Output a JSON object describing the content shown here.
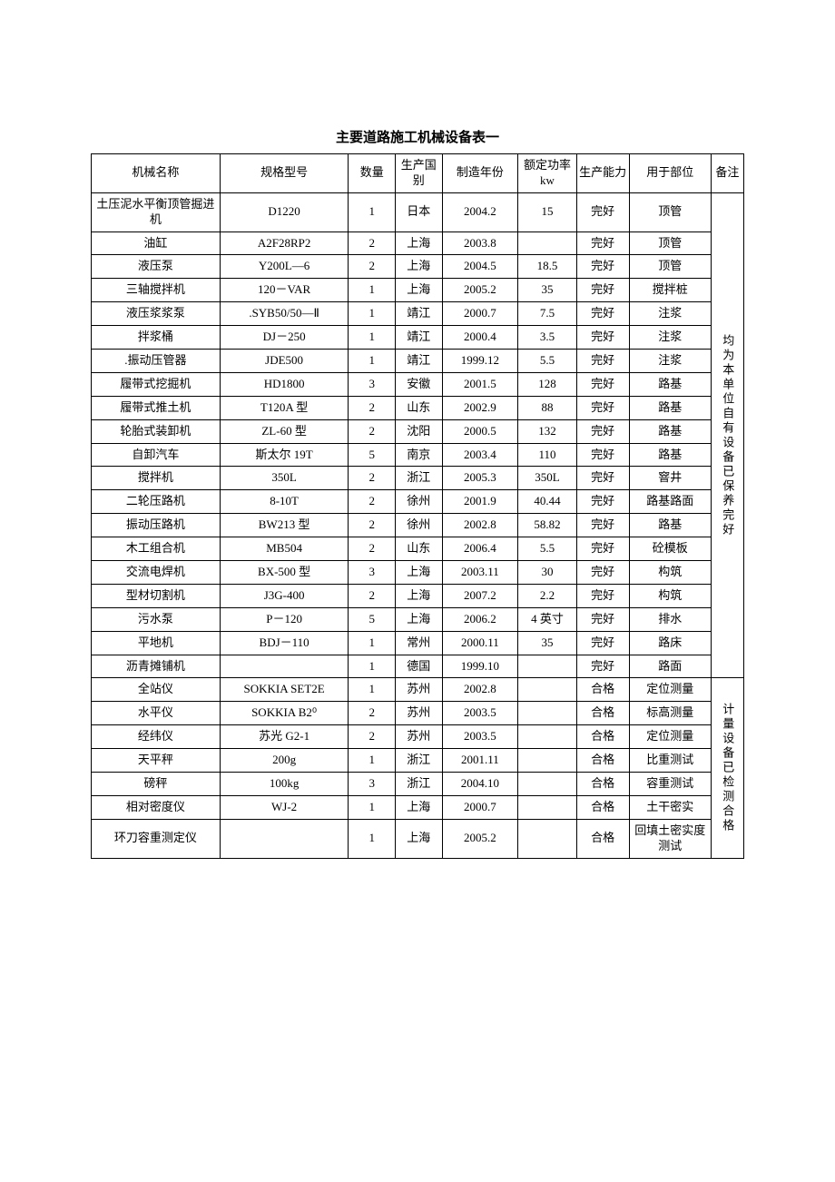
{
  "title": "主要道路施工机械设备表一",
  "headers": {
    "name": "机械名称",
    "spec": "规格型号",
    "qty": "数量",
    "origin": "生产国别",
    "year": "制造年份",
    "power": "额定功率kw",
    "capacity": "生产能力",
    "use": "用于部位",
    "note": "备注"
  },
  "group1_note": "均为本单位自有设备已保养完好",
  "group2_note": "计量设备已检测合格",
  "rows": [
    {
      "name": "土压泥水平衡顶管掘进机",
      "spec": "D1220",
      "qty": "1",
      "origin": "日本",
      "year": "2004.2",
      "power": "15",
      "capacity": "完好",
      "use": "顶管"
    },
    {
      "name": "油缸",
      "spec": "A2F28RP2",
      "qty": "2",
      "origin": "上海",
      "year": "2003.8",
      "power": "",
      "capacity": "完好",
      "use": "顶管"
    },
    {
      "name": "液压泵",
      "spec": "Y200L—6",
      "qty": "2",
      "origin": "上海",
      "year": "2004.5",
      "power": "18.5",
      "capacity": "完好",
      "use": "顶管"
    },
    {
      "name": "三轴搅拌机",
      "spec": "120－VAR",
      "qty": "1",
      "origin": "上海",
      "year": "2005.2",
      "power": "35",
      "capacity": "完好",
      "use": "搅拌桩"
    },
    {
      "name": "液压浆浆泵",
      "spec": ".SYB50/50—Ⅱ",
      "qty": "1",
      "origin": "靖江",
      "year": "2000.7",
      "power": "7.5",
      "capacity": "完好",
      "use": "注浆"
    },
    {
      "name": "拌浆桶",
      "spec": "DJ－250",
      "qty": "1",
      "origin": "靖江",
      "year": "2000.4",
      "power": "3.5",
      "capacity": "完好",
      "use": "注浆"
    },
    {
      "name": ".振动压管器",
      "spec": "JDE500",
      "qty": "1",
      "origin": "靖江",
      "year": "1999.12",
      "power": "5.5",
      "capacity": "完好",
      "use": "注浆"
    },
    {
      "name": "履带式挖掘机",
      "spec": "HD1800",
      "qty": "3",
      "origin": "安徽",
      "year": "2001.5",
      "power": "128",
      "capacity": "完好",
      "use": "路基"
    },
    {
      "name": "履带式推土机",
      "spec": "T120A 型",
      "qty": "2",
      "origin": "山东",
      "year": "2002.9",
      "power": "88",
      "capacity": "完好",
      "use": "路基"
    },
    {
      "name": "轮胎式装卸机",
      "spec": "ZL-60 型",
      "qty": "2",
      "origin": "沈阳",
      "year": "2000.5",
      "power": "132",
      "capacity": "完好",
      "use": "路基"
    },
    {
      "name": "自卸汽车",
      "spec": "斯太尔 19T",
      "qty": "5",
      "origin": "南京",
      "year": "2003.4",
      "power": "110",
      "capacity": "完好",
      "use": "路基"
    },
    {
      "name": "搅拌机",
      "spec": "350L",
      "qty": "2",
      "origin": "浙江",
      "year": "2005.3",
      "power": "350L",
      "capacity": "完好",
      "use": "窨井"
    },
    {
      "name": "二轮压路机",
      "spec": "8-10T",
      "qty": "2",
      "origin": "徐州",
      "year": "2001.9",
      "power": "40.44",
      "capacity": "完好",
      "use": "路基路面"
    },
    {
      "name": "振动压路机",
      "spec": "BW213 型",
      "qty": "2",
      "origin": "徐州",
      "year": "2002.8",
      "power": "58.82",
      "capacity": "完好",
      "use": "路基"
    },
    {
      "name": "木工组合机",
      "spec": "MB504",
      "qty": "2",
      "origin": "山东",
      "year": "2006.4",
      "power": "5.5",
      "capacity": "完好",
      "use": "砼模板"
    },
    {
      "name": "交流电焊机",
      "spec": "BX-500 型",
      "qty": "3",
      "origin": "上海",
      "year": "2003.11",
      "power": "30",
      "capacity": "完好",
      "use": "构筑"
    },
    {
      "name": "型材切割机",
      "spec": "J3G-400",
      "qty": "2",
      "origin": "上海",
      "year": "2007.2",
      "power": "2.2",
      "capacity": "完好",
      "use": "构筑"
    },
    {
      "name": "污水泵",
      "spec": "P－120",
      "qty": "5",
      "origin": "上海",
      "year": "2006.2",
      "power": "4 英寸",
      "capacity": "完好",
      "use": "排水"
    },
    {
      "name": "平地机",
      "spec": "BDJ－110",
      "qty": "1",
      "origin": "常州",
      "year": "2000.11",
      "power": "35",
      "capacity": "完好",
      "use": "路床"
    },
    {
      "name": "沥青摊铺机",
      "spec": "",
      "qty": "1",
      "origin": "德国",
      "year": "1999.10",
      "power": "",
      "capacity": "完好",
      "use": "路面"
    },
    {
      "name": "全站仪",
      "spec": "SOKKIA  SET2E",
      "qty": "1",
      "origin": "苏州",
      "year": "2002.8",
      "power": "",
      "capacity": "合格",
      "use": "定位测量"
    },
    {
      "name": "水平仪",
      "spec": "SOKKIA  B2⁰",
      "qty": "2",
      "origin": "苏州",
      "year": "2003.5",
      "power": "",
      "capacity": "合格",
      "use": "标高测量"
    },
    {
      "name": "经纬仪",
      "spec": "苏光 G2-1",
      "qty": "2",
      "origin": "苏州",
      "year": "2003.5",
      "power": "",
      "capacity": "合格",
      "use": "定位测量"
    },
    {
      "name": "天平秤",
      "spec": "200g",
      "qty": "1",
      "origin": "浙江",
      "year": "2001.11",
      "power": "",
      "capacity": "合格",
      "use": "比重测试"
    },
    {
      "name": "磅秤",
      "spec": "100kg",
      "qty": "3",
      "origin": "浙江",
      "year": "2004.10",
      "power": "",
      "capacity": "合格",
      "use": "容重测试"
    },
    {
      "name": "相对密度仪",
      "spec": "WJ-2",
      "qty": "1",
      "origin": "上海",
      "year": "2000.7",
      "power": "",
      "capacity": "合格",
      "use": "土干密实"
    },
    {
      "name": "环刀容重测定仪",
      "spec": "",
      "qty": "1",
      "origin": "上海",
      "year": "2005.2",
      "power": "",
      "capacity": "合格",
      "use": "回填土密实度测试"
    }
  ]
}
